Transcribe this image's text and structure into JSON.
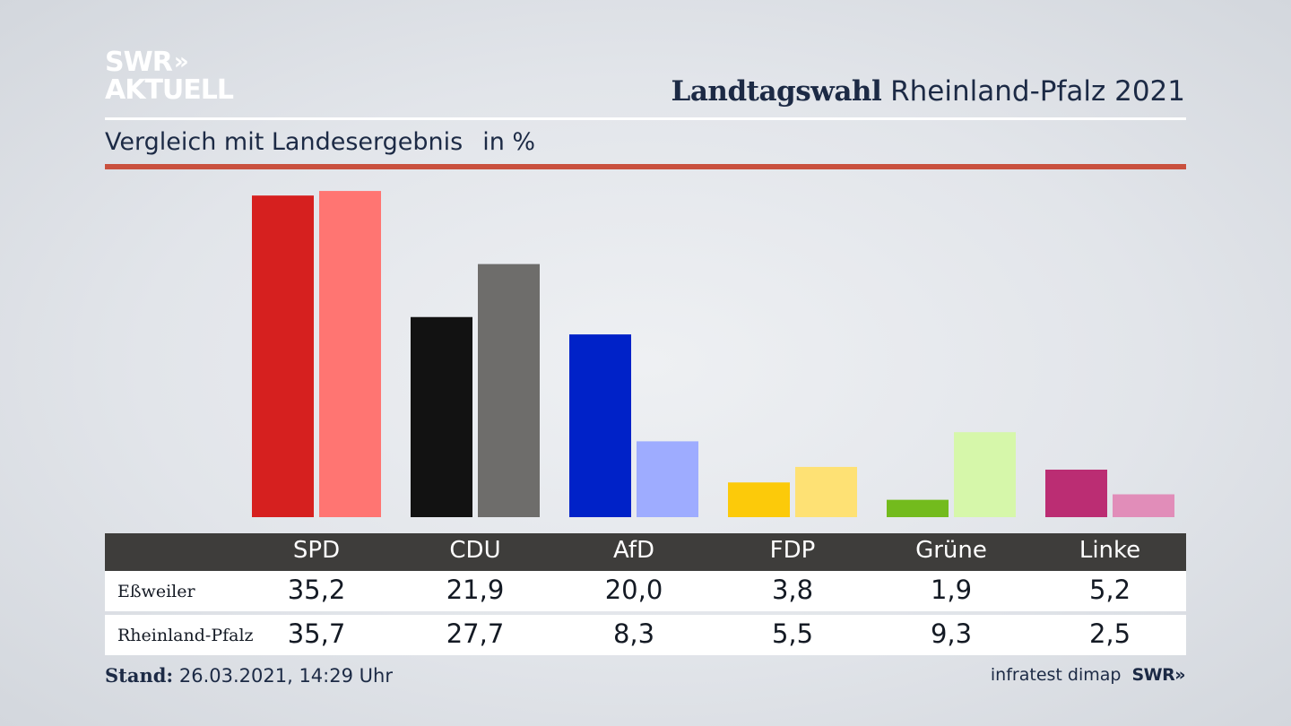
{
  "logo": {
    "line1": "SWR",
    "chevrons": "»",
    "line2": "AKTUELL"
  },
  "header": {
    "title_bold": "Landtagswahl",
    "title_rest": " Rheinland-Pfalz 2021"
  },
  "subtitle": {
    "text": "Vergleich mit Landesergebnis",
    "unit": "in %"
  },
  "footer": {
    "stand_label": "Stand:",
    "stand_value": " 26.03.2021, 14:29 Uhr",
    "source": "infratest dimap",
    "brand": "SWR»"
  },
  "chart_data": {
    "type": "bar",
    "categories": [
      "SPD",
      "CDU",
      "AfD",
      "FDP",
      "Grüne",
      "Linke"
    ],
    "series": [
      {
        "name": "Eßweiler",
        "values": [
          35.2,
          21.9,
          20.0,
          3.8,
          1.9,
          5.2
        ],
        "labels": [
          "35,2",
          "21,9",
          "20,0",
          "3,8",
          "1,9",
          "5,2"
        ],
        "colors": [
          "#d6201f",
          "#121212",
          "#0022c8",
          "#fcca0a",
          "#73bb1d",
          "#bb2d73"
        ]
      },
      {
        "name": "Rheinland-Pfalz",
        "values": [
          35.7,
          27.7,
          8.3,
          5.5,
          9.3,
          2.5
        ],
        "labels": [
          "35,7",
          "27,7",
          "8,3",
          "5,5",
          "9,3",
          "2,5"
        ],
        "colors": [
          "#ff7572",
          "#6e6d6b",
          "#9eacff",
          "#fee174",
          "#d6f7aa",
          "#e18db9"
        ]
      }
    ],
    "ylim": [
      0,
      36
    ]
  }
}
